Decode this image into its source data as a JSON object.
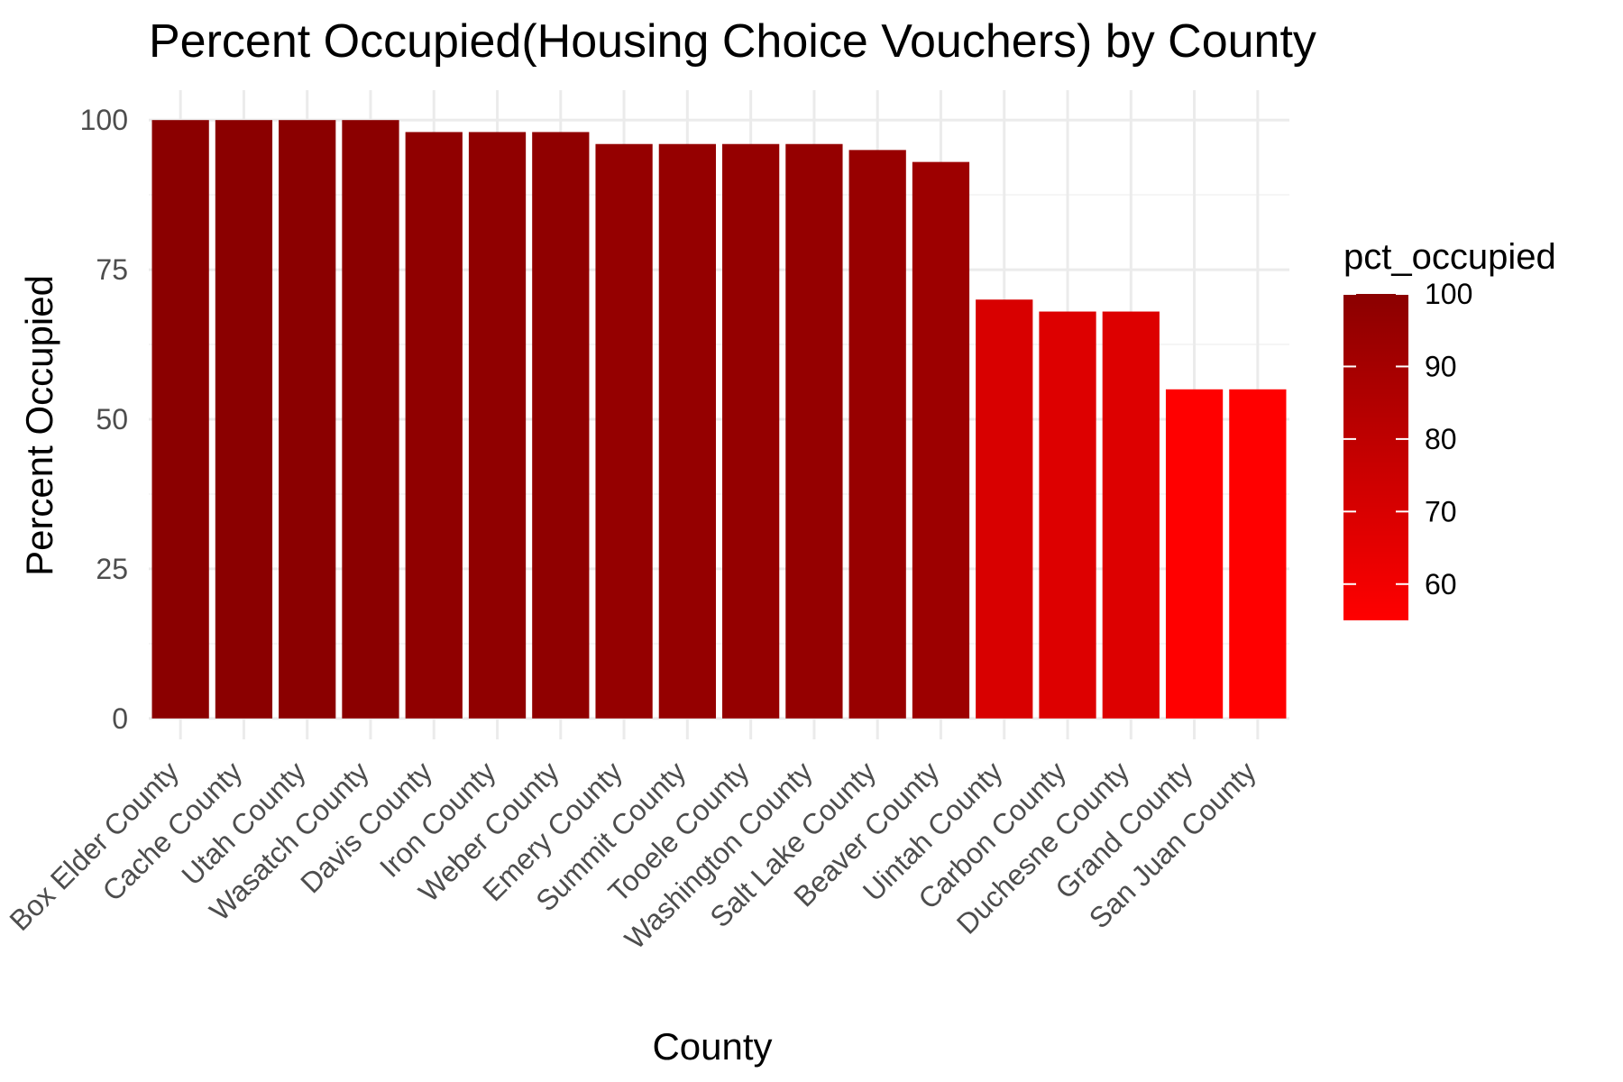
{
  "chart_data": {
    "type": "bar",
    "title": "Percent Occupied(Housing Choice Vouchers) by County",
    "xlabel": "County",
    "ylabel": "Percent Occupied",
    "categories": [
      "Box Elder County",
      "Cache County",
      "Utah County",
      "Wasatch County",
      "Davis County",
      "Iron County",
      "Weber County",
      "Emery County",
      "Summit County",
      "Tooele County",
      "Washington County",
      "Salt Lake County",
      "Beaver County",
      "Uintah County",
      "Carbon County",
      "Duchesne County",
      "Grand County",
      "San Juan County"
    ],
    "values": [
      100,
      100,
      100,
      100,
      98,
      98,
      98,
      96,
      96,
      96,
      96,
      95,
      93,
      70,
      68,
      68,
      55,
      55
    ],
    "ylim": [
      0,
      100
    ],
    "yticks": [
      0,
      25,
      50,
      75,
      100
    ],
    "grid": true,
    "legend": {
      "title": "pct_occupied",
      "placement": "right",
      "ticks": [
        60,
        70,
        80,
        90,
        100
      ],
      "range": [
        55,
        100
      ],
      "color_low": "#ff0000",
      "color_high": "#8b0000"
    },
    "colors": {
      "grid_major": "#ebebeb",
      "grid_minor": "#f5f5f5",
      "tick_text": "#4d4d4d"
    }
  }
}
